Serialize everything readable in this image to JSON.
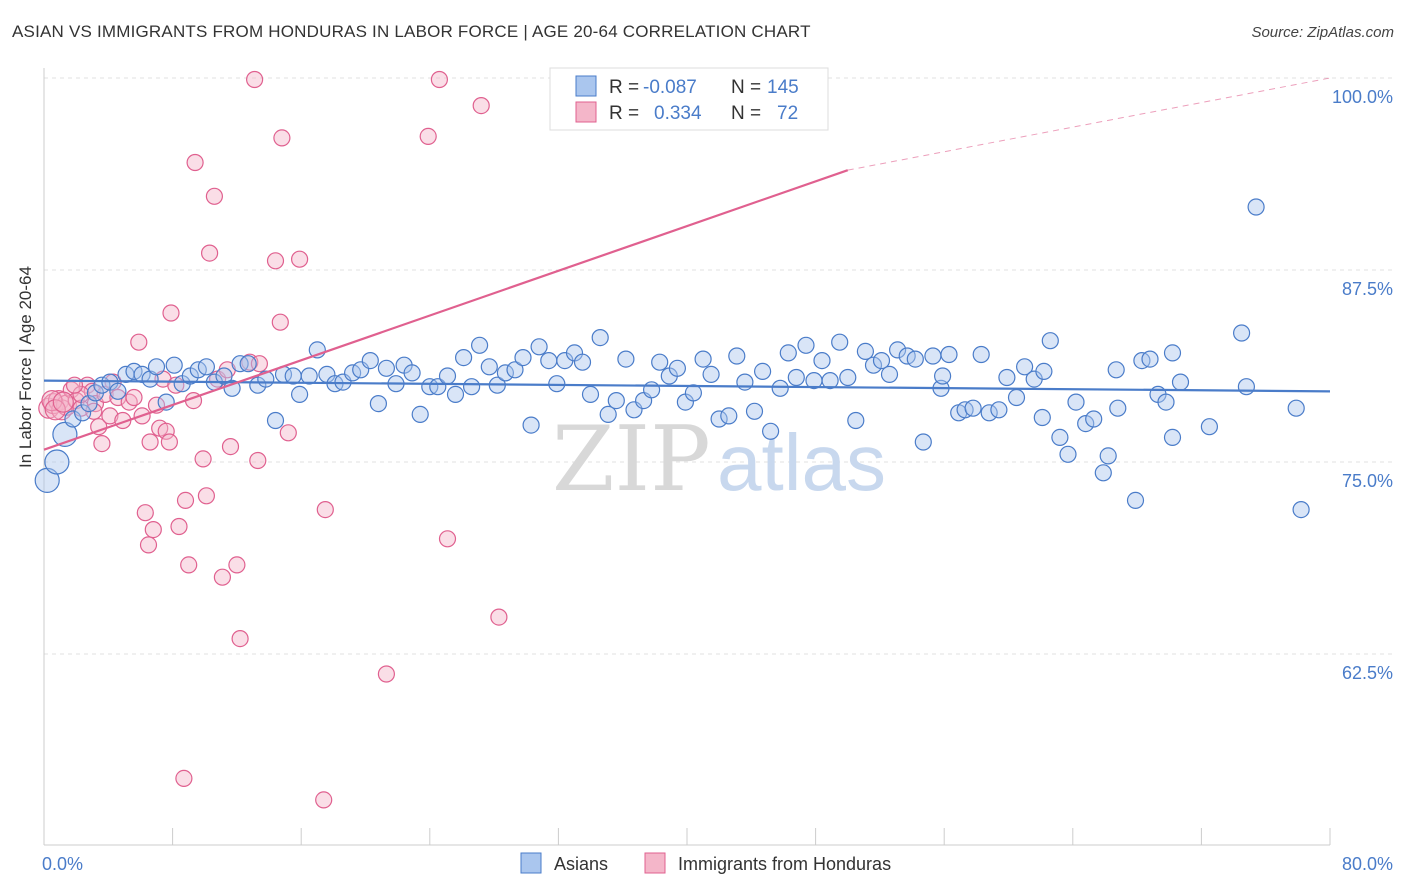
{
  "header": {
    "title": "ASIAN VS IMMIGRANTS FROM HONDURAS IN LABOR FORCE | AGE 20-64 CORRELATION CHART",
    "source": "Source: ZipAtlas.com"
  },
  "watermark": {
    "part1": "ZIP",
    "part2": "atlas"
  },
  "colors": {
    "asians": "#4a7cc9",
    "asians_fill": "#aac6ee",
    "honduras": "#e0608f",
    "honduras_fill": "#f4b6c9",
    "grid": "#e0e0e0",
    "tick_text": "#4a7cc9"
  },
  "stats": {
    "rows": [
      {
        "r_label": "R =",
        "r_value": "-0.087",
        "n_label": "N =",
        "n_value": "145"
      },
      {
        "r_label": "R =",
        "r_value": "0.334",
        "n_label": "N =",
        "n_value": "72"
      }
    ]
  },
  "chart_data": {
    "type": "scatter",
    "title": "ASIAN VS IMMIGRANTS FROM HONDURAS IN LABOR FORCE | AGE 20-64 CORRELATION CHART",
    "xlabel": "",
    "ylabel": "In Labor Force | Age 20-64",
    "xlim": [
      0,
      80
    ],
    "ylim": [
      50,
      100
    ],
    "x_tick_labels": [
      "0.0%",
      "80.0%"
    ],
    "y_ticks": [
      {
        "value": 62.5,
        "label": "62.5%"
      },
      {
        "value": 75,
        "label": "75.0%"
      },
      {
        "value": 87.5,
        "label": "87.5%"
      },
      {
        "value": 100,
        "label": "100.0%"
      }
    ],
    "grid": true,
    "legend_position": "bottom",
    "series": [
      {
        "name": "Asians",
        "r": -0.087,
        "n": 145,
        "trend": {
          "x_start": 0,
          "y_start": 80.3,
          "x_end": 80,
          "y_end": 79.6
        },
        "points": [
          [
            0.2,
            73.8
          ],
          [
            0.8,
            75.0
          ],
          [
            1.3,
            76.8
          ],
          [
            1.8,
            77.8
          ],
          [
            2.4,
            78.2
          ],
          [
            2.8,
            78.8
          ],
          [
            3.2,
            79.5
          ],
          [
            3.6,
            80.0
          ],
          [
            4.1,
            80.2
          ],
          [
            4.6,
            79.6
          ],
          [
            5.1,
            80.7
          ],
          [
            5.6,
            80.9
          ],
          [
            6.1,
            80.7
          ],
          [
            6.6,
            80.4
          ],
          [
            7.0,
            81.2
          ],
          [
            7.6,
            78.9
          ],
          [
            8.1,
            81.3
          ],
          [
            8.6,
            80.1
          ],
          [
            9.1,
            80.6
          ],
          [
            9.6,
            81.0
          ],
          [
            10.1,
            81.2
          ],
          [
            10.6,
            80.2
          ],
          [
            11.2,
            80.6
          ],
          [
            11.7,
            79.8
          ],
          [
            12.2,
            81.4
          ],
          [
            12.7,
            81.4
          ],
          [
            13.3,
            80.0
          ],
          [
            13.8,
            80.4
          ],
          [
            14.4,
            77.7
          ],
          [
            14.9,
            80.7
          ],
          [
            15.5,
            80.6
          ],
          [
            15.9,
            79.4
          ],
          [
            16.5,
            80.6
          ],
          [
            17.0,
            82.3
          ],
          [
            17.6,
            80.7
          ],
          [
            18.1,
            80.1
          ],
          [
            18.6,
            80.2
          ],
          [
            19.2,
            80.8
          ],
          [
            19.7,
            81.0
          ],
          [
            20.3,
            81.6
          ],
          [
            20.8,
            78.8
          ],
          [
            21.3,
            81.1
          ],
          [
            21.9,
            80.1
          ],
          [
            22.4,
            81.3
          ],
          [
            22.9,
            80.8
          ],
          [
            23.4,
            78.1
          ],
          [
            24.0,
            79.9
          ],
          [
            24.5,
            79.9
          ],
          [
            25.1,
            80.6
          ],
          [
            25.6,
            79.4
          ],
          [
            26.1,
            81.8
          ],
          [
            26.6,
            79.9
          ],
          [
            27.1,
            82.6
          ],
          [
            27.7,
            81.2
          ],
          [
            28.2,
            80.0
          ],
          [
            28.7,
            80.8
          ],
          [
            29.3,
            81.0
          ],
          [
            29.8,
            81.8
          ],
          [
            30.3,
            77.4
          ],
          [
            30.8,
            82.5
          ],
          [
            31.4,
            81.6
          ],
          [
            31.9,
            80.1
          ],
          [
            32.4,
            81.6
          ],
          [
            33.0,
            82.1
          ],
          [
            33.5,
            81.5
          ],
          [
            34.0,
            79.4
          ],
          [
            34.6,
            83.1
          ],
          [
            35.1,
            78.1
          ],
          [
            35.6,
            79.0
          ],
          [
            36.2,
            81.7
          ],
          [
            36.7,
            78.4
          ],
          [
            37.3,
            79.0
          ],
          [
            37.8,
            79.7
          ],
          [
            38.3,
            81.5
          ],
          [
            38.9,
            80.6
          ],
          [
            39.4,
            81.1
          ],
          [
            39.9,
            78.9
          ],
          [
            40.4,
            79.5
          ],
          [
            41.0,
            81.7
          ],
          [
            41.5,
            80.7
          ],
          [
            42.0,
            77.8
          ],
          [
            42.6,
            78.0
          ],
          [
            43.1,
            81.9
          ],
          [
            43.6,
            80.2
          ],
          [
            44.2,
            78.3
          ],
          [
            44.7,
            80.9
          ],
          [
            45.2,
            77.0
          ],
          [
            45.8,
            79.8
          ],
          [
            46.3,
            82.1
          ],
          [
            46.8,
            80.5
          ],
          [
            47.4,
            82.6
          ],
          [
            47.9,
            80.3
          ],
          [
            48.4,
            81.6
          ],
          [
            48.9,
            80.3
          ],
          [
            49.5,
            82.8
          ],
          [
            50.0,
            80.5
          ],
          [
            50.5,
            77.7
          ],
          [
            51.1,
            82.2
          ],
          [
            51.6,
            81.3
          ],
          [
            52.1,
            81.6
          ],
          [
            52.6,
            80.7
          ],
          [
            53.1,
            82.3
          ],
          [
            53.7,
            81.9
          ],
          [
            54.2,
            81.7
          ],
          [
            54.7,
            76.3
          ],
          [
            55.3,
            81.9
          ],
          [
            55.8,
            79.8
          ],
          [
            56.3,
            82.0
          ],
          [
            56.9,
            78.2
          ],
          [
            57.3,
            78.4
          ],
          [
            57.8,
            78.5
          ],
          [
            58.3,
            82.0
          ],
          [
            58.8,
            78.2
          ],
          [
            59.4,
            78.4
          ],
          [
            59.9,
            80.5
          ],
          [
            60.5,
            79.2
          ],
          [
            61.0,
            81.2
          ],
          [
            61.6,
            80.4
          ],
          [
            62.1,
            77.9
          ],
          [
            62.6,
            82.9
          ],
          [
            63.2,
            76.6
          ],
          [
            63.7,
            75.5
          ],
          [
            64.2,
            78.9
          ],
          [
            64.8,
            77.5
          ],
          [
            65.3,
            77.8
          ],
          [
            65.9,
            74.3
          ],
          [
            66.2,
            75.4
          ],
          [
            66.8,
            78.5
          ],
          [
            67.9,
            72.5
          ],
          [
            68.3,
            81.6
          ],
          [
            69.3,
            79.4
          ],
          [
            69.8,
            78.9
          ],
          [
            70.2,
            76.6
          ],
          [
            70.7,
            80.2
          ],
          [
            72.5,
            77.3
          ],
          [
            74.5,
            83.4
          ],
          [
            75.4,
            91.6
          ],
          [
            77.9,
            78.5
          ],
          [
            78.2,
            71.9
          ],
          [
            74.8,
            79.9
          ],
          [
            70.2,
            82.1
          ],
          [
            66.7,
            81.0
          ],
          [
            68.8,
            81.7
          ],
          [
            62.2,
            80.9
          ],
          [
            55.9,
            80.6
          ]
        ]
      },
      {
        "name": "Immigrants from Honduras",
        "r": 0.334,
        "n": 72,
        "trend": {
          "x_start": 0,
          "y_start": 75.8,
          "x_end": 50,
          "y_end": 94.0,
          "dashed_to_x": 80,
          "dashed_to_y": 100
        },
        "points": [
          [
            0.3,
            78.5
          ],
          [
            0.6,
            78.8
          ],
          [
            0.9,
            79.0
          ],
          [
            1.1,
            78.4
          ],
          [
            1.4,
            78.7
          ],
          [
            1.7,
            79.7
          ],
          [
            2.0,
            79.0
          ],
          [
            2.3,
            78.5
          ],
          [
            2.7,
            80.0
          ],
          [
            3.0,
            79.6
          ],
          [
            3.2,
            78.8
          ],
          [
            3.4,
            77.3
          ],
          [
            3.6,
            76.2
          ],
          [
            3.8,
            79.4
          ],
          [
            4.1,
            78.0
          ],
          [
            4.3,
            80.2
          ],
          [
            4.6,
            79.2
          ],
          [
            4.9,
            77.7
          ],
          [
            5.3,
            78.9
          ],
          [
            5.6,
            79.2
          ],
          [
            5.9,
            82.8
          ],
          [
            6.1,
            78.0
          ],
          [
            6.3,
            71.7
          ],
          [
            6.5,
            69.6
          ],
          [
            6.6,
            76.3
          ],
          [
            6.8,
            70.6
          ],
          [
            7.0,
            78.7
          ],
          [
            7.2,
            77.2
          ],
          [
            7.4,
            80.4
          ],
          [
            7.6,
            77.0
          ],
          [
            7.8,
            76.3
          ],
          [
            7.9,
            84.7
          ],
          [
            8.2,
            80.0
          ],
          [
            8.4,
            70.8
          ],
          [
            8.7,
            54.4
          ],
          [
            8.8,
            72.5
          ],
          [
            9.0,
            68.3
          ],
          [
            9.3,
            79.0
          ],
          [
            9.4,
            94.5
          ],
          [
            9.9,
            75.2
          ],
          [
            10.1,
            72.8
          ],
          [
            10.3,
            88.6
          ],
          [
            10.6,
            92.3
          ],
          [
            10.8,
            80.4
          ],
          [
            11.1,
            67.5
          ],
          [
            11.4,
            81.0
          ],
          [
            11.6,
            76.0
          ],
          [
            12.0,
            68.3
          ],
          [
            12.2,
            63.5
          ],
          [
            12.8,
            81.5
          ],
          [
            13.1,
            99.9
          ],
          [
            13.3,
            75.1
          ],
          [
            13.4,
            81.4
          ],
          [
            14.4,
            88.1
          ],
          [
            14.7,
            84.1
          ],
          [
            14.8,
            96.1
          ],
          [
            15.2,
            76.9
          ],
          [
            15.9,
            88.2
          ],
          [
            17.4,
            53.0
          ],
          [
            17.5,
            71.9
          ],
          [
            21.3,
            61.2
          ],
          [
            23.9,
            96.2
          ],
          [
            24.6,
            99.9
          ],
          [
            25.1,
            70.0
          ],
          [
            27.2,
            98.2
          ],
          [
            28.3,
            64.9
          ],
          [
            2.3,
            79.4
          ],
          [
            1.9,
            80.0
          ],
          [
            0.5,
            79.0
          ],
          [
            0.7,
            78.4
          ],
          [
            1.2,
            78.9
          ],
          [
            3.1,
            78.3
          ]
        ]
      }
    ]
  },
  "legend": {
    "items": [
      {
        "label": "Asians",
        "swatch": "asians"
      },
      {
        "label": "Immigrants from Honduras",
        "swatch": "honduras"
      }
    ]
  }
}
